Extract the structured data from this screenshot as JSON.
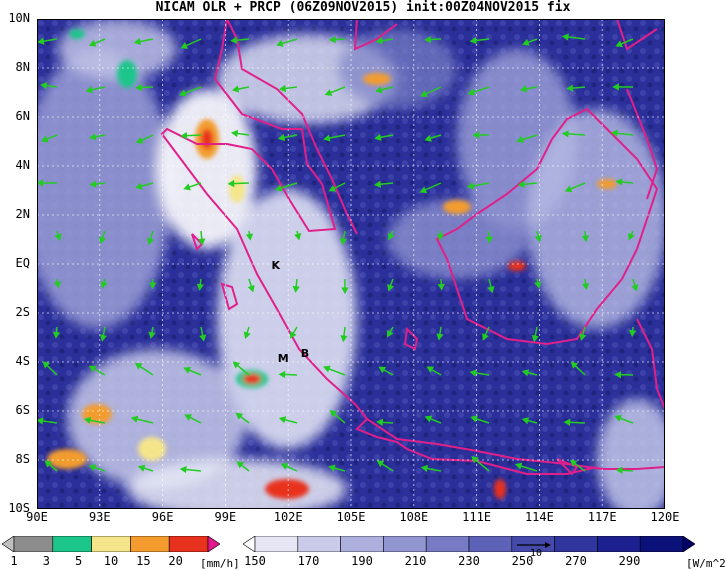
{
  "title": "NICAM OLR + PRCP (06Z09NOV2015) init:00Z04NOV2015 fix",
  "map": {
    "lon_range": [
      90,
      120
    ],
    "lat_range": [
      -10,
      10
    ],
    "lat_labels": [
      "10N",
      "8N",
      "6N",
      "4N",
      "2N",
      "EQ",
      "2S",
      "4S",
      "6S",
      "8S",
      "10S"
    ],
    "lon_labels": [
      "90E",
      "93E",
      "96E",
      "99E",
      "102E",
      "105E",
      "108E",
      "111E",
      "114E",
      "117E",
      "120E"
    ],
    "markers": [
      {
        "label": "K",
        "lon": 101.2,
        "lat": -0.2
      },
      {
        "label": "M",
        "lon": 101.5,
        "lat": -4.0
      },
      {
        "label": "B",
        "lon": 102.6,
        "lat": -3.8
      }
    ],
    "coast_color": "#e0208a",
    "wind_color": "#22cc22",
    "reference_vector_label": "10"
  },
  "prcp_scale": {
    "unit": "[mm/h]",
    "labels": [
      "1",
      "3",
      "5",
      "10",
      "15",
      "20"
    ],
    "colors": [
      "#bfbfbf",
      "#8c8c8c",
      "#1cc58a",
      "#f5e58a",
      "#f39c2d",
      "#e8321e",
      "#e01a8a"
    ]
  },
  "olr_scale": {
    "unit": "[W/m^2]",
    "labels": [
      "150",
      "170",
      "190",
      "210",
      "230",
      "250",
      "270",
      "290"
    ],
    "colors": [
      "#ffffff",
      "#e6e6f5",
      "#c9cbe9",
      "#adb0dd",
      "#9195d0",
      "#777bc4",
      "#5d62b7",
      "#4549aa",
      "#30359d",
      "#1d2190",
      "#0c1079",
      "#000066"
    ]
  }
}
